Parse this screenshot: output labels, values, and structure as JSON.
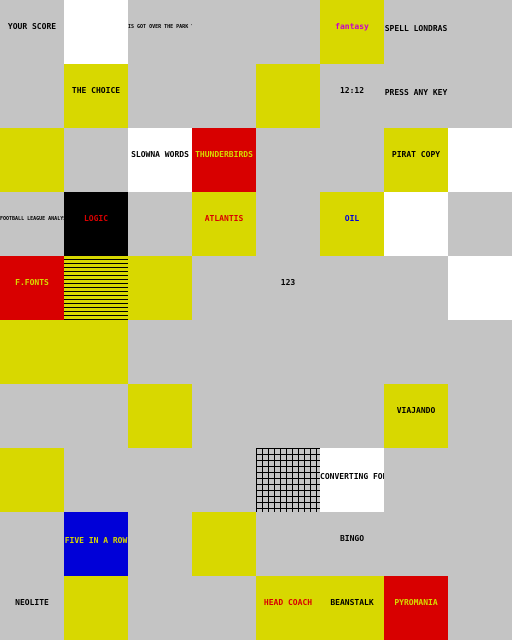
{
  "colors": {
    "gray": "#c4c4c4",
    "yellow": "#d8d800",
    "black": "#000000",
    "blue": "#0000d8",
    "cyan": "#00c8c8",
    "red": "#d80000",
    "green": "#00c800",
    "magenta": "#c800c8",
    "white": "#ffffff"
  },
  "tiles": [
    {
      "t": "YOUR SCORE",
      "bg": "gray",
      "fg": "black"
    },
    {
      "t": "",
      "bg": "white",
      "fg": "black"
    },
    {
      "t": "IS GOT OVER THE PARK YET",
      "bg": "gray",
      "fg": "black"
    },
    {
      "t": "",
      "bg": "gray",
      "fg": "black"
    },
    {
      "t": "",
      "bg": "gray",
      "fg": "black"
    },
    {
      "t": "fantasy",
      "bg": "yellow",
      "fg": "magenta"
    },
    {
      "t": "SPELL LONDRAS",
      "bg": "gray",
      "fg": "black"
    },
    {
      "t": "",
      "bg": "gray",
      "fg": "black"
    },
    {
      "t": "",
      "bg": "gray",
      "fg": "black"
    },
    {
      "t": "THE CHOICE",
      "bg": "yellow",
      "fg": "black"
    },
    {
      "t": "",
      "bg": "gray",
      "fg": "black"
    },
    {
      "t": "",
      "bg": "gray",
      "fg": "black"
    },
    {
      "t": "",
      "bg": "yellow",
      "fg": "black"
    },
    {
      "t": "12:12",
      "bg": "gray",
      "fg": "black"
    },
    {
      "t": "PRESS ANY KEY",
      "bg": "gray",
      "fg": "black"
    },
    {
      "t": "",
      "bg": "gray",
      "fg": "black"
    },
    {
      "t": "",
      "bg": "yellow",
      "fg": "black"
    },
    {
      "t": "",
      "bg": "gray",
      "fg": "black"
    },
    {
      "t": "SLOWNA WORDS",
      "bg": "white",
      "fg": "black"
    },
    {
      "t": "THUNDERBIRDS",
      "bg": "red",
      "fg": "yellow"
    },
    {
      "t": "",
      "bg": "gray",
      "fg": "black"
    },
    {
      "t": "",
      "bg": "gray",
      "fg": "black"
    },
    {
      "t": "PIRAT COPY",
      "bg": "yellow",
      "fg": "black"
    },
    {
      "t": "",
      "bg": "white",
      "fg": "black"
    },
    {
      "t": "FOOTBALL LEAGUE ANALYSIS",
      "bg": "gray",
      "fg": "black"
    },
    {
      "t": "LOGIC",
      "bg": "black",
      "fg": "red"
    },
    {
      "t": "",
      "bg": "gray",
      "fg": "black"
    },
    {
      "t": "ATLANTIS",
      "bg": "yellow",
      "fg": "red"
    },
    {
      "t": "",
      "bg": "gray",
      "fg": "black"
    },
    {
      "t": "OIL",
      "bg": "yellow",
      "fg": "blue"
    },
    {
      "t": "",
      "bg": "white",
      "fg": "black"
    },
    {
      "t": "",
      "bg": "gray",
      "fg": "black"
    },
    {
      "t": "F.FONTS",
      "bg": "red",
      "fg": "yellow"
    },
    {
      "t": "",
      "bg": "stripes",
      "fg": "black"
    },
    {
      "t": "",
      "bg": "yellow",
      "fg": "black"
    },
    {
      "t": "",
      "bg": "gray",
      "fg": "black"
    },
    {
      "t": "123",
      "bg": "gray",
      "fg": "black"
    },
    {
      "t": "",
      "bg": "gray",
      "fg": "black"
    },
    {
      "t": "",
      "bg": "gray",
      "fg": "black"
    },
    {
      "t": "",
      "bg": "white",
      "fg": "black"
    },
    {
      "t": "",
      "bg": "yellow",
      "fg": "black"
    },
    {
      "t": "",
      "bg": "yellow",
      "fg": "black"
    },
    {
      "t": "",
      "bg": "gray",
      "fg": "black"
    },
    {
      "t": "",
      "bg": "gray",
      "fg": "black"
    },
    {
      "t": "",
      "bg": "gray",
      "fg": "black"
    },
    {
      "t": "",
      "bg": "gray",
      "fg": "black"
    },
    {
      "t": "",
      "bg": "gray",
      "fg": "black"
    },
    {
      "t": "",
      "bg": "gray",
      "fg": "black"
    },
    {
      "t": "",
      "bg": "gray",
      "fg": "black"
    },
    {
      "t": "",
      "bg": "gray",
      "fg": "black"
    },
    {
      "t": "",
      "bg": "yellow",
      "fg": "black"
    },
    {
      "t": "",
      "bg": "gray",
      "fg": "black"
    },
    {
      "t": "",
      "bg": "gray",
      "fg": "black"
    },
    {
      "t": "",
      "bg": "gray",
      "fg": "black"
    },
    {
      "t": "VIAJANDO",
      "bg": "yellow",
      "fg": "black"
    },
    {
      "t": "",
      "bg": "gray",
      "fg": "black"
    },
    {
      "t": "",
      "bg": "yellow",
      "fg": "black"
    },
    {
      "t": "",
      "bg": "gray",
      "fg": "black"
    },
    {
      "t": "",
      "bg": "gray",
      "fg": "black"
    },
    {
      "t": "",
      "bg": "gray",
      "fg": "black"
    },
    {
      "t": "",
      "bg": "grid",
      "fg": "black"
    },
    {
      "t": "CONVERTING FONT",
      "bg": "white",
      "fg": "black"
    },
    {
      "t": "",
      "bg": "gray",
      "fg": "black"
    },
    {
      "t": "",
      "bg": "gray",
      "fg": "black"
    },
    {
      "t": "",
      "bg": "gray",
      "fg": "black"
    },
    {
      "t": "FIVE IN A ROW",
      "bg": "blue",
      "fg": "yellow"
    },
    {
      "t": "",
      "bg": "gray",
      "fg": "black"
    },
    {
      "t": "",
      "bg": "yellow",
      "fg": "black"
    },
    {
      "t": "",
      "bg": "gray",
      "fg": "black"
    },
    {
      "t": "BINGO",
      "bg": "gray",
      "fg": "black"
    },
    {
      "t": "",
      "bg": "gray",
      "fg": "black"
    },
    {
      "t": "",
      "bg": "gray",
      "fg": "black"
    },
    {
      "t": "NEOLITE",
      "bg": "gray",
      "fg": "black"
    },
    {
      "t": "",
      "bg": "yellow",
      "fg": "black"
    },
    {
      "t": "",
      "bg": "gray",
      "fg": "black"
    },
    {
      "t": "",
      "bg": "gray",
      "fg": "black"
    },
    {
      "t": "HEAD COACH",
      "bg": "yellow",
      "fg": "red"
    },
    {
      "t": "BEANSTALK",
      "bg": "yellow",
      "fg": "black"
    },
    {
      "t": "PYROMANIA",
      "bg": "red",
      "fg": "yellow"
    },
    {
      "t": "",
      "bg": "gray",
      "fg": "black"
    }
  ]
}
